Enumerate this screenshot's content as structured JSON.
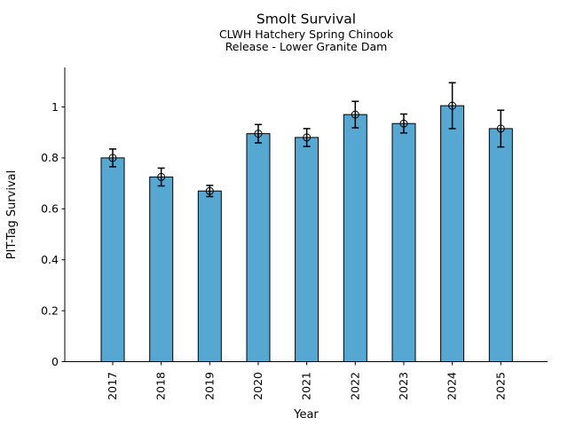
{
  "chart_data": {
    "type": "bar",
    "title": "Smolt Survival",
    "subtitle": [
      "CLWH Hatchery Spring Chinook",
      "Release - Lower Granite Dam"
    ],
    "xlabel": "Year",
    "ylabel": "PIT-Tag Survival",
    "categories": [
      "2017",
      "2018",
      "2019",
      "2020",
      "2021",
      "2022",
      "2023",
      "2024",
      "2025"
    ],
    "values": [
      0.8,
      0.725,
      0.67,
      0.895,
      0.88,
      0.97,
      0.935,
      1.005,
      0.915
    ],
    "errors": [
      0.035,
      0.035,
      0.022,
      0.036,
      0.035,
      0.052,
      0.037,
      0.09,
      0.072
    ],
    "yticks": [
      0,
      0.2,
      0.4,
      0.6,
      0.8,
      1
    ],
    "ytick_labels": [
      "0",
      "0.2",
      "0.4",
      "0.6",
      "0.8",
      "1"
    ],
    "ylim": [
      0,
      1.155
    ],
    "grid": false,
    "bar_color": "#57A7D3",
    "bar_edge_color": "#000000",
    "error_color": "#000000",
    "marker": "open-circle",
    "x_tick_label_rotation_deg": 90
  }
}
